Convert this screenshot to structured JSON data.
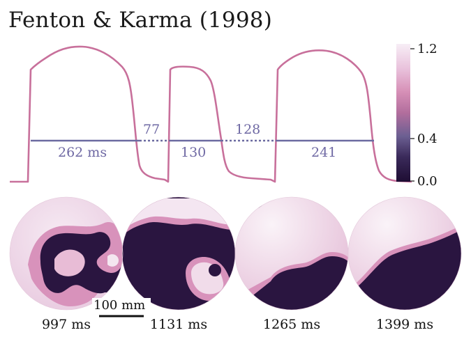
{
  "title": "Fenton & Karma (1998)",
  "colors": {
    "trace": "#c8709b",
    "interval_line": "#6b6aa0",
    "interval_text": "#6e68a3",
    "dark": "#2a1540",
    "light": "#f3e6f1",
    "mid": "#d190b7"
  },
  "intervals": {
    "apd1": "262 ms",
    "di1": "77",
    "apd2": "130",
    "di2": "128",
    "apd3": "241"
  },
  "colorbar": {
    "ticks": [
      "1.2",
      "0.4",
      "0.0"
    ]
  },
  "snapshots": [
    {
      "time": "997 ms"
    },
    {
      "time": "1131 ms"
    },
    {
      "time": "1265 ms"
    },
    {
      "time": "1399 ms"
    }
  ],
  "scale_bar": {
    "label": "100 mm"
  }
}
